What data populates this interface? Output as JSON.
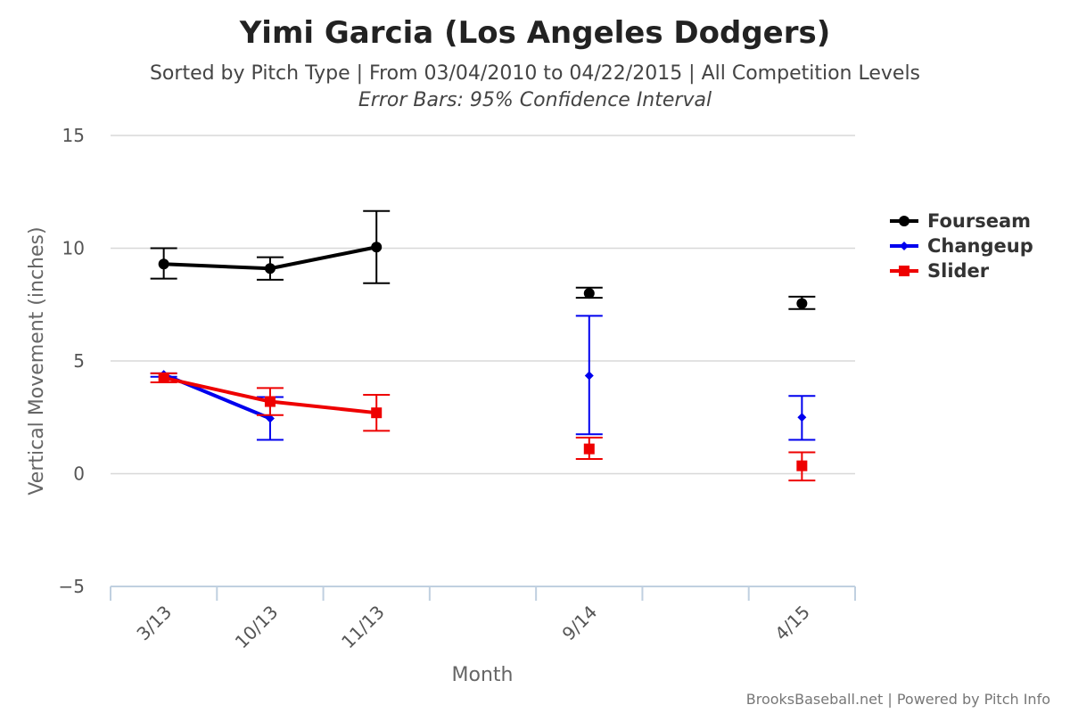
{
  "chart_data": {
    "type": "line",
    "title": "Yimi Garcia (Los Angeles Dodgers)",
    "subtitle": "Sorted by Pitch Type | From 03/04/2010 to 04/22/2015 | All Competition Levels",
    "subtitle2": "Error Bars: 95% Confidence Interval",
    "xlabel": "Month",
    "ylabel": "Vertical Movement (inches)",
    "ylim": [
      -5,
      15
    ],
    "yticks": [
      -5,
      0,
      5,
      10,
      15
    ],
    "ytick_labels": [
      "−5",
      "0",
      "5",
      "10",
      "15"
    ],
    "grid": true,
    "legend_position": "right",
    "categories": [
      "3/13",
      "10/13",
      "11/13",
      "",
      "9/14",
      "",
      "4/15"
    ],
    "x_tick_labels": [
      "3/13",
      "10/13",
      "11/13",
      "9/14",
      "4/15"
    ],
    "series": [
      {
        "name": "Fourseam",
        "color": "#000000",
        "marker": "circle",
        "points": [
          {
            "x": "3/13",
            "y": 9.3,
            "low": 8.65,
            "high": 10.0
          },
          {
            "x": "10/13",
            "y": 9.1,
            "low": 8.6,
            "high": 9.6
          },
          {
            "x": "11/13",
            "y": 10.05,
            "low": 8.45,
            "high": 11.65
          },
          {
            "x": "9/14",
            "y": 8.0,
            "low": 7.8,
            "high": 8.25
          },
          {
            "x": "4/15",
            "y": 7.55,
            "low": 7.3,
            "high": 7.85
          }
        ]
      },
      {
        "name": "Changeup",
        "color": "#0000ee",
        "marker": "diamond",
        "points": [
          {
            "x": "3/13",
            "y": 4.4,
            "low": 4.3,
            "high": 4.45
          },
          {
            "x": "10/13",
            "y": 2.45,
            "low": 1.5,
            "high": 3.4
          },
          {
            "x": "9/14",
            "y": 4.35,
            "low": 1.75,
            "high": 7.0
          },
          {
            "x": "4/15",
            "y": 2.5,
            "low": 1.5,
            "high": 3.45
          }
        ]
      },
      {
        "name": "Slider",
        "color": "#ee0000",
        "marker": "square",
        "points": [
          {
            "x": "3/13",
            "y": 4.25,
            "low": 4.05,
            "high": 4.45
          },
          {
            "x": "10/13",
            "y": 3.2,
            "low": 2.6,
            "high": 3.8
          },
          {
            "x": "11/13",
            "y": 2.7,
            "low": 1.9,
            "high": 3.5
          },
          {
            "x": "9/14",
            "y": 1.1,
            "low": 0.65,
            "high": 1.6
          },
          {
            "x": "4/15",
            "y": 0.35,
            "low": -0.3,
            "high": 0.95
          }
        ]
      }
    ]
  },
  "credit": "BrooksBaseball.net | Powered by Pitch Info"
}
